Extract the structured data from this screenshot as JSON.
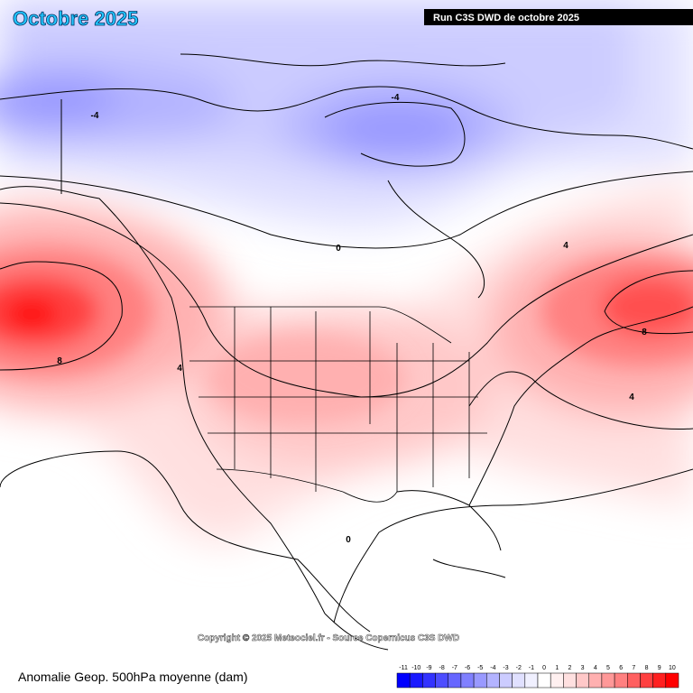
{
  "header": {
    "title": "Octobre 2025",
    "run": "Run C3S DWD de octobre 2025"
  },
  "copyright": "Copyright © 2025 Meteociel.fr - Source Copernicus C3S DWD",
  "caption": "Anomalie Geop. 500hPa moyenne (dam)",
  "contour_labels": [
    "-4",
    "-4",
    "0",
    "4",
    "8",
    "4",
    "4",
    "8",
    "0"
  ],
  "legend": {
    "labels": [
      "-11",
      "-10",
      "-9",
      "-8",
      "-7",
      "-6",
      "-5",
      "-4",
      "-3",
      "-2",
      "-1",
      "0",
      "1",
      "2",
      "3",
      "4",
      "5",
      "6",
      "7",
      "8",
      "9",
      "10"
    ],
    "colors": [
      "#0000ff",
      "#1a1aff",
      "#3333ff",
      "#4d4dff",
      "#6666ff",
      "#8080ff",
      "#9999ff",
      "#b3b3ff",
      "#ccccff",
      "#e0e0ff",
      "#f0f0ff",
      "#ffffff",
      "#fff0f0",
      "#ffe0e0",
      "#ffc8c8",
      "#ffb0b0",
      "#ff9898",
      "#ff8080",
      "#ff6060",
      "#ff4040",
      "#ff2020",
      "#ff0000"
    ]
  }
}
